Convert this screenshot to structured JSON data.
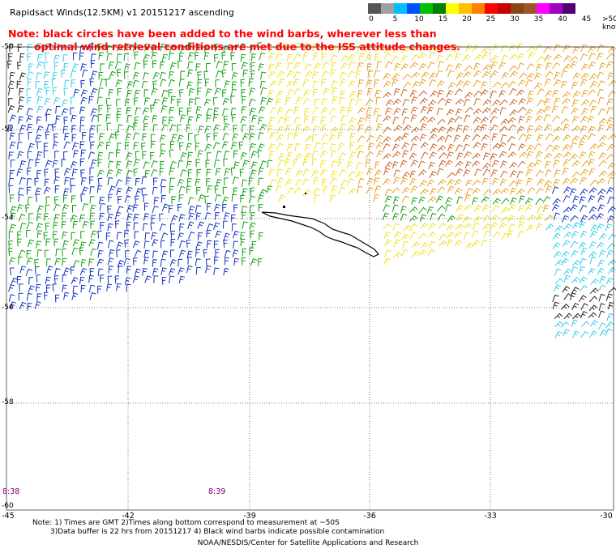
{
  "header": {
    "title": "Rapidsact Winds(12.5KM)  v1  20151217  ascending",
    "note_line1": "Note: black circles have been added to the wind barbs, wherever less than",
    "note_line2": "optimal wind retrieval conditions are met due to the ISS attitude changes."
  },
  "legend": {
    "colors": [
      "#555555",
      "#a0a0a0",
      "#00bfff",
      "#0050ff",
      "#00c000",
      "#008000",
      "#ffff00",
      "#ffc000",
      "#ff8000",
      "#ff0000",
      "#c80000",
      "#8b4513",
      "#a0522d",
      "#ff00ff",
      "#a000c0",
      "#500070"
    ],
    "labels": [
      "0",
      "5",
      "10",
      "15",
      "20",
      "25",
      "30",
      "35",
      "40",
      "45",
      ">50 knots"
    ]
  },
  "map": {
    "lat_labels": [
      "-50",
      "-52",
      "-54",
      "-56",
      "-58",
      "-60"
    ],
    "lon_labels": [
      "-45",
      "-42",
      "-39",
      "-36",
      "-33",
      "-30"
    ],
    "time_labels": [
      "8:38",
      "8:39"
    ],
    "wind_speed_classes": {
      "cyan": "#33ccee",
      "blue": "#1030c0",
      "green": "#10a010",
      "yellow": "#f0e020",
      "orange": "#e8a020",
      "brown": "#c86020",
      "dark": "#202020"
    }
  },
  "footer": {
    "note1": "Note: 1) Times are GMT 2)Times along bottom correspond to measurement at ~50S",
    "note2": "3)Data buffer is 22 hrs from 20151217 4) Black wind barbs indicate possible contamination",
    "credit": "NOAA/NESDIS/Center for Satellite Applications and Research"
  }
}
